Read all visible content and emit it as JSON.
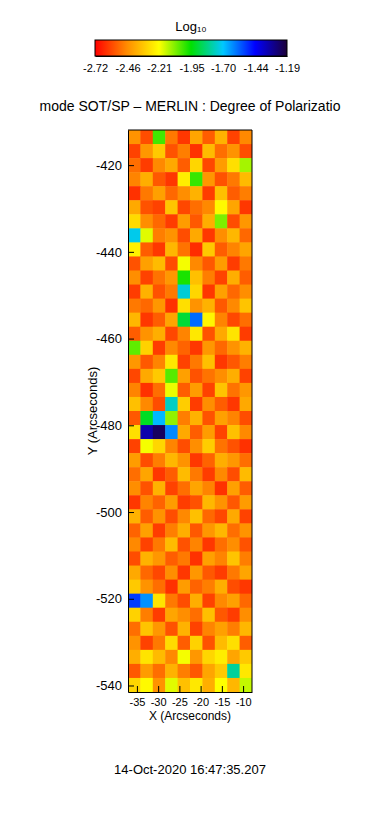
{
  "chart_data": {
    "type": "heatmap",
    "title": "mode SOT/SP – MERLIN : Degree of Polarizatio",
    "x_label": "X (Arcseconds)",
    "y_label": "Y (Arcseconds)",
    "annotation": "14-Oct-2020 16:47:35.207",
    "xlim": [
      -37.1,
      -7.9
    ],
    "ylim": [
      -541.5,
      -411.9
    ],
    "xticks": [
      -35,
      -30,
      -25,
      -20,
      -15,
      -10
    ],
    "yticks": [
      -420,
      -440,
      -460,
      -480,
      -500,
      -520,
      -540
    ],
    "x": [
      -35.64,
      -32.72,
      -29.8,
      -26.88,
      -23.96,
      -21.04,
      -18.12,
      -15.2,
      -12.28,
      -9.36
    ],
    "y": [
      -413.52,
      -416.76,
      -420.0,
      -423.24,
      -426.48,
      -429.72,
      -432.96,
      -436.2,
      -439.44,
      -442.68,
      -445.92,
      -449.16,
      -452.4,
      -455.64,
      -458.88,
      -462.12,
      -465.36,
      -468.6,
      -471.84,
      -475.08,
      -478.32,
      -481.56,
      -484.8,
      -488.04,
      -491.28,
      -494.52,
      -497.76,
      -501.0,
      -504.24,
      -507.48,
      -510.72,
      -513.96,
      -517.2,
      -520.44,
      -523.68,
      -526.92,
      -530.16,
      -533.4,
      -536.64,
      -539.88
    ],
    "cells": [
      [
        -2.45,
        -2.58,
        -2.02,
        -2.5,
        -2.62,
        -2.41,
        -2.55,
        -2.38,
        -2.6,
        -2.47
      ],
      [
        -2.6,
        -2.44,
        -2.33,
        -2.57,
        -2.49,
        -2.63,
        -2.36,
        -2.52,
        -2.45,
        -2.58
      ],
      [
        -2.52,
        -2.61,
        -2.47,
        -2.4,
        -2.55,
        -2.3,
        -2.59,
        -2.43,
        -2.28,
        -2.12
      ],
      [
        -2.48,
        -2.39,
        -2.56,
        -2.62,
        -2.25,
        -2.01,
        -2.44,
        -2.57,
        -2.5,
        -2.36
      ],
      [
        -2.63,
        -2.5,
        -2.42,
        -2.53,
        -2.46,
        -2.38,
        -2.61,
        -2.35,
        -2.55,
        -2.49
      ],
      [
        -2.4,
        -2.57,
        -2.6,
        -2.34,
        -2.59,
        -2.52,
        -2.47,
        -2.22,
        -2.41,
        -2.62
      ],
      [
        -2.29,
        -2.46,
        -2.53,
        -2.61,
        -2.43,
        -2.56,
        -2.39,
        -2.08,
        -2.58,
        -2.44
      ],
      [
        -1.72,
        -2.18,
        -2.49,
        -2.45,
        -2.58,
        -2.4,
        -2.62,
        -2.46,
        -2.37,
        -2.53
      ],
      [
        -2.24,
        -2.55,
        -2.62,
        -2.37,
        -2.51,
        -2.64,
        -2.33,
        -2.55,
        -2.48,
        -2.41
      ],
      [
        -2.57,
        -2.42,
        -2.36,
        -2.58,
        -2.2,
        -2.47,
        -2.56,
        -2.43,
        -2.61,
        -2.5
      ],
      [
        -2.46,
        -2.6,
        -2.51,
        -2.44,
        -1.98,
        -2.35,
        -2.49,
        -2.6,
        -2.39,
        -2.55
      ],
      [
        -2.61,
        -2.38,
        -2.57,
        -2.5,
        -1.74,
        -2.3,
        -2.62,
        -2.42,
        -2.53,
        -2.46
      ],
      [
        -2.5,
        -2.53,
        -2.44,
        -2.63,
        -2.28,
        -2.45,
        -2.38,
        -2.56,
        -2.47,
        -2.34
      ],
      [
        -2.37,
        -2.62,
        -2.55,
        -2.41,
        -1.9,
        -1.58,
        -2.23,
        -2.48,
        -2.59,
        -2.52
      ],
      [
        -2.55,
        -2.45,
        -2.39,
        -2.59,
        -2.48,
        -2.26,
        -2.57,
        -2.4,
        -2.27,
        -2.61
      ],
      [
        -2.05,
        -2.31,
        -2.61,
        -2.47,
        -2.54,
        -2.62,
        -2.44,
        -2.53,
        -2.45,
        -2.38
      ],
      [
        -2.44,
        -2.56,
        -2.48,
        -2.26,
        -2.6,
        -2.5,
        -2.35,
        -2.62,
        -2.56,
        -2.49
      ],
      [
        -2.59,
        -2.4,
        -2.33,
        -2.04,
        -2.42,
        -2.57,
        -2.51,
        -2.46,
        -2.39,
        -2.6
      ],
      [
        -2.48,
        -2.63,
        -2.52,
        -2.19,
        -2.55,
        -2.43,
        -2.6,
        -2.34,
        -2.51,
        -2.44
      ],
      [
        -2.35,
        -2.47,
        -2.58,
        -1.76,
        -2.32,
        -2.61,
        -2.46,
        -2.55,
        -2.62,
        -2.4
      ],
      [
        -2.56,
        -1.92,
        -1.68,
        -2.1,
        -2.49,
        -2.38,
        -2.57,
        -2.42,
        -2.48,
        -2.58
      ],
      [
        -2.28,
        -1.34,
        -1.24,
        -1.62,
        -2.4,
        -2.55,
        -2.43,
        -2.6,
        -2.35,
        -2.47
      ],
      [
        -2.6,
        -2.2,
        -2.3,
        -2.48,
        -2.58,
        -2.46,
        -2.32,
        -2.51,
        -2.57,
        -2.63
      ],
      [
        -2.43,
        -2.58,
        -2.49,
        -2.37,
        -2.45,
        -2.62,
        -2.54,
        -2.39,
        -2.44,
        -2.52
      ],
      [
        -2.52,
        -2.41,
        -2.62,
        -2.55,
        -2.36,
        -2.5,
        -2.61,
        -2.47,
        -2.58,
        -2.36
      ],
      [
        -2.46,
        -2.57,
        -2.38,
        -2.6,
        -2.52,
        -2.41,
        -2.48,
        -2.63,
        -2.42,
        -2.55
      ],
      [
        -2.62,
        -2.48,
        -2.54,
        -2.43,
        -2.61,
        -2.57,
        -2.37,
        -2.45,
        -2.56,
        -2.43
      ],
      [
        -2.38,
        -2.55,
        -2.45,
        -2.58,
        -2.47,
        -2.35,
        -2.53,
        -2.59,
        -2.4,
        -2.6
      ],
      [
        -2.54,
        -2.42,
        -2.61,
        -2.49,
        -2.39,
        -2.56,
        -2.44,
        -2.37,
        -2.52,
        -2.45
      ],
      [
        -2.47,
        -2.6,
        -2.5,
        -2.36,
        -2.57,
        -2.48,
        -2.62,
        -2.52,
        -2.46,
        -2.57
      ],
      [
        -2.58,
        -2.38,
        -2.44,
        -2.55,
        -2.5,
        -2.63,
        -2.42,
        -2.48,
        -2.34,
        -2.49
      ],
      [
        -2.4,
        -2.53,
        -2.59,
        -2.46,
        -2.62,
        -2.44,
        -2.56,
        -2.61,
        -2.5,
        -2.41
      ],
      [
        -2.33,
        -2.45,
        -2.52,
        -2.63,
        -2.43,
        -2.54,
        -2.49,
        -2.39,
        -2.58,
        -2.62
      ],
      [
        -1.52,
        -1.63,
        -2.27,
        -2.5,
        -2.58,
        -2.39,
        -2.6,
        -2.47,
        -2.42,
        -2.53
      ],
      [
        -2.31,
        -2.49,
        -2.61,
        -2.41,
        -2.46,
        -2.52,
        -2.35,
        -2.56,
        -2.61,
        -2.46
      ],
      [
        -2.52,
        -2.34,
        -2.44,
        -2.57,
        -2.38,
        -2.6,
        -2.48,
        -2.42,
        -2.49,
        -2.37
      ],
      [
        -2.45,
        -2.6,
        -2.5,
        -2.29,
        -2.55,
        -2.31,
        -2.57,
        -2.36,
        -2.28,
        -2.55
      ],
      [
        -2.39,
        -2.27,
        -2.36,
        -2.47,
        -2.2,
        -2.44,
        -2.3,
        -2.25,
        -2.41,
        -2.33
      ],
      [
        -2.56,
        -2.43,
        -2.52,
        -2.38,
        -2.49,
        -2.56,
        -2.41,
        -2.33,
        -1.8,
        -2.26
      ],
      [
        -2.3,
        -2.22,
        -2.45,
        -2.18,
        -2.35,
        -2.26,
        -2.39,
        -2.21,
        -2.37,
        -2.15
      ]
    ],
    "colorbar": {
      "label": "Log₁₀",
      "range": [
        -2.72,
        -1.19
      ],
      "ticks": [
        -2.72,
        -2.46,
        -2.21,
        -1.95,
        {
          "value": -1.7,
          "label": "-1.70"
        },
        -1.44,
        -1.19
      ]
    }
  }
}
